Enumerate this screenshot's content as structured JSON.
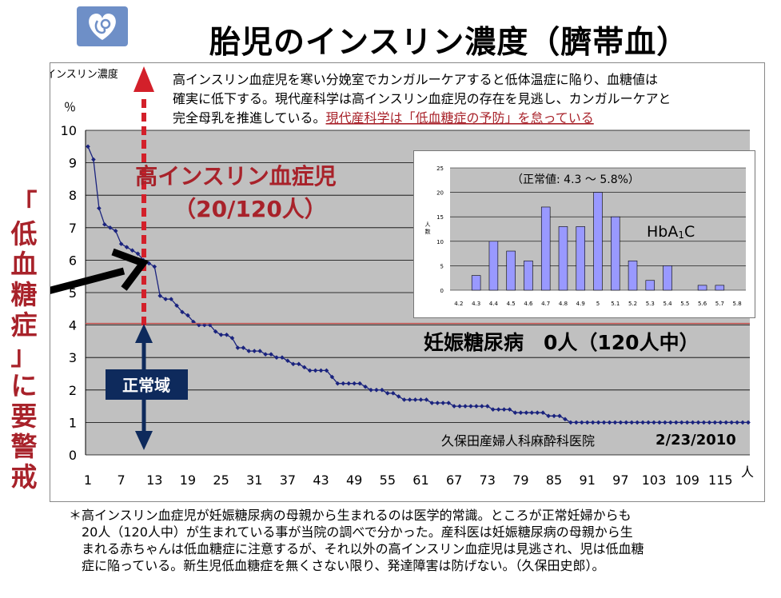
{
  "title": "胎児のインスリン濃度（臍帯血）",
  "logo_icon": "fetus-heart-logo-icon",
  "colors": {
    "series": "#1a237e",
    "plot_bg": "#c0c0c0",
    "dark_red": "#a8222a",
    "navy": "#0e2a5c",
    "threshold_line": "#c0504d",
    "inset_bar": "#9999ff"
  },
  "annotation": {
    "lines": [
      "高インスリン血症児を寒い分娩室でカンガルーケアすると低体温症に陥り、血糖値は",
      "確実に低下する。現代産科学は高インスリン血症児の存在を見逃し、カンガルーケアと"
    ],
    "line3_prefix": "完全母乳を推進している。",
    "line3_link": "現代産科学は「低血糖症の予防」を怠っている"
  },
  "hyperinsulin_label_1": "高インスリン血症児",
  "hyperinsulin_label_2": "（20/120人）",
  "gdm_label": "妊娠糖尿病　0人（120人中）",
  "normal_range_label": "正常域",
  "side_label_lines": [
    "「",
    "低",
    "血",
    "糖",
    "症",
    "」",
    "に",
    "要",
    "警",
    "戒"
  ],
  "clinic": "久保田産婦人科麻酔科医院",
  "date": "2/23/2010",
  "chart_data": {
    "type": "scatter",
    "ylabel_1": "インスリン濃度",
    "ylabel_2": "％",
    "x_unit": "人",
    "ylim": [
      0,
      10
    ],
    "xlim": [
      1,
      120
    ],
    "y_ticks": [
      0,
      1,
      2,
      3,
      4,
      5,
      6,
      7,
      8,
      9,
      10
    ],
    "x_ticks": [
      1,
      7,
      13,
      19,
      25,
      31,
      37,
      43,
      49,
      55,
      61,
      67,
      73,
      79,
      85,
      91,
      97,
      103,
      109,
      115
    ],
    "threshold": 4.05,
    "grid": true,
    "values": [
      9.5,
      9.1,
      7.6,
      7.1,
      7.0,
      6.9,
      6.5,
      6.4,
      6.3,
      6.2,
      6.0,
      5.9,
      5.8,
      4.9,
      4.8,
      4.8,
      4.6,
      4.4,
      4.3,
      4.1,
      4.0,
      4.0,
      4.0,
      3.8,
      3.7,
      3.7,
      3.6,
      3.3,
      3.3,
      3.2,
      3.2,
      3.2,
      3.1,
      3.1,
      3.0,
      3.0,
      2.9,
      2.8,
      2.8,
      2.7,
      2.6,
      2.6,
      2.6,
      2.6,
      2.4,
      2.2,
      2.2,
      2.2,
      2.2,
      2.2,
      2.1,
      2.0,
      2.0,
      2.0,
      1.9,
      1.9,
      1.8,
      1.7,
      1.7,
      1.7,
      1.7,
      1.7,
      1.6,
      1.6,
      1.6,
      1.6,
      1.5,
      1.5,
      1.5,
      1.5,
      1.5,
      1.5,
      1.5,
      1.4,
      1.4,
      1.4,
      1.4,
      1.3,
      1.3,
      1.3,
      1.3,
      1.3,
      1.3,
      1.2,
      1.2,
      1.2,
      1.1,
      1.0,
      1.0,
      1.0,
      1.0,
      1.0,
      1.0,
      1.0,
      1.0,
      1.0,
      1.0,
      1.0,
      1.0,
      1.0,
      1.0,
      1.0,
      1.0,
      1.0,
      1.0,
      1.0,
      1.0,
      1.0,
      1.0,
      1.0,
      1.0,
      1.0,
      1.0,
      1.0,
      1.0,
      1.0,
      1.0,
      1.0,
      1.0,
      1.0
    ]
  },
  "inset_chart": {
    "type": "bar",
    "normal_label": "（正常値: 4.3 〜 5.8%）",
    "series_label": "HbA1C",
    "series_label_main": "HbA",
    "series_label_sub": "1",
    "series_label_end": "C",
    "ylabel": "人数",
    "ylim": [
      0,
      25
    ],
    "y_ticks": [
      0,
      5,
      10,
      15,
      20,
      25
    ],
    "categories": [
      "4.2",
      "4.3",
      "4.4",
      "4.5",
      "4.6",
      "4.7",
      "4.8",
      "4.9",
      "5",
      "5.1",
      "5.2",
      "5.3",
      "5.4",
      "5.5",
      "5.6",
      "5.7",
      "5.8"
    ],
    "values": [
      0,
      3,
      10,
      8,
      6,
      17,
      13,
      13,
      20,
      15,
      6,
      2,
      5,
      0,
      1,
      1,
      0
    ]
  },
  "footnote": [
    "＊高インスリン血症児が妊娠糖尿病の母親から生まれるのは医学的常識。ところが正常妊婦からも",
    "　20人（120人中）が生まれている事が当院の調べで分かった。産科医は妊娠糖尿病の母親から生",
    "　まれる赤ちゃんは低血糖症に注意するが、それ以外の高インスリン血症児は見逃され、児は低血糖",
    "　症に陥っている。新生児低血糖症を無くさない限り、発達障害は防げない。（久保田史郎）。"
  ]
}
